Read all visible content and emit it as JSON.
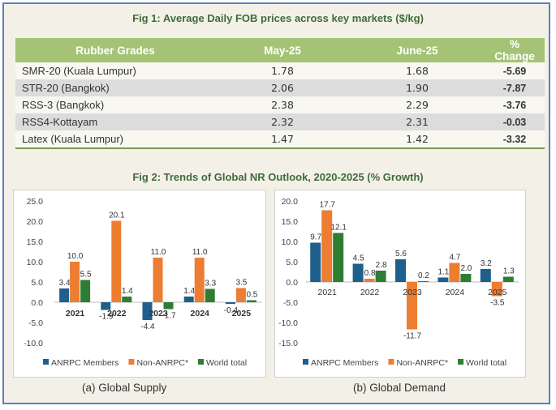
{
  "fig1": {
    "title": "Fig 1: Average Daily FOB prices across key markets ($/kg)",
    "headers": [
      "Rubber Grades",
      "May-25",
      "June-25",
      "% Change"
    ],
    "rows": [
      {
        "grade": "SMR-20 (Kuala Lumpur)",
        "may": "1.78",
        "june": "1.68",
        "change": "-5.69"
      },
      {
        "grade": "STR-20 (Bangkok)",
        "may": "2.06",
        "june": "1.90",
        "change": "-7.87"
      },
      {
        "grade": "RSS-3 (Bangkok)",
        "may": "2.38",
        "june": "2.29",
        "change": "-3.76"
      },
      {
        "grade": "RSS4-Kottayam",
        "may": "2.32",
        "june": "2.31",
        "change": "-0.03"
      },
      {
        "grade": "Latex (Kuala Lumpur)",
        "may": "1.47",
        "june": "1.42",
        "change": "-3.32"
      }
    ]
  },
  "fig2": {
    "title": "Fig 2: Trends of Global NR Outlook, 2020-2025 (% Growth)"
  },
  "colors": {
    "series": [
      "#1f5f8b",
      "#ed7d31",
      "#2e7d32"
    ],
    "header_bg": "#a4c374",
    "title_green": "#3f6b3a",
    "frame_border": "#5a7ec7"
  },
  "chart_data": [
    {
      "type": "bar",
      "caption": "(a) Global Supply",
      "categories": [
        "2021",
        "2022",
        "2023",
        "2024",
        "2025"
      ],
      "series": [
        {
          "name": "ANRPC Members",
          "values": [
            3.4,
            -1.9,
            -4.4,
            1.4,
            -0.4
          ]
        },
        {
          "name": "Non-ANRPC*",
          "values": [
            10.0,
            20.1,
            11.0,
            11.0,
            3.5
          ]
        },
        {
          "name": "World total",
          "values": [
            5.5,
            1.4,
            -1.7,
            3.3,
            0.5
          ]
        }
      ],
      "labels": [
        [
          "3.4",
          "-1.9",
          "-4.4",
          "1.4",
          "-0.4"
        ],
        [
          "10.0",
          "20.1",
          "11.0",
          "11.0",
          "3.5"
        ],
        [
          "5.5",
          "1.4",
          "-1.7",
          "3.3",
          "0.5"
        ]
      ],
      "yticks": [
        "25.0",
        "20.0",
        "15.0",
        "10.0",
        "5.0",
        "0.0",
        "-5.0",
        "-10.0"
      ],
      "ylim": [
        -10,
        25
      ],
      "legend": "bottom",
      "grid": false
    },
    {
      "type": "bar",
      "caption": "(b) Global Demand",
      "categories": [
        "2021",
        "2022",
        "2023",
        "2024",
        "2025"
      ],
      "series": [
        {
          "name": "ANRPC Members",
          "values": [
            9.7,
            4.5,
            5.6,
            1.1,
            3.2
          ]
        },
        {
          "name": "Non-ANRPC*",
          "values": [
            17.7,
            0.8,
            -11.7,
            4.7,
            -3.5
          ]
        },
        {
          "name": "World total",
          "values": [
            12.1,
            2.8,
            0.2,
            2.0,
            1.3
          ]
        }
      ],
      "labels": [
        [
          "9.7",
          "4.5",
          "5.6",
          "1.1",
          "3.2"
        ],
        [
          "17.7",
          "0.8",
          "-11.7",
          "4.7",
          "-3.5"
        ],
        [
          "12.1",
          "2.8",
          "0.2",
          "2.0",
          "1.3"
        ]
      ],
      "yticks": [
        "20.0",
        "15.0",
        "10.0",
        "5.0",
        "0.0",
        "-5.0",
        "-10.0",
        "-15.0"
      ],
      "ylim": [
        -15,
        20
      ],
      "legend": "bottom",
      "grid": false
    }
  ]
}
